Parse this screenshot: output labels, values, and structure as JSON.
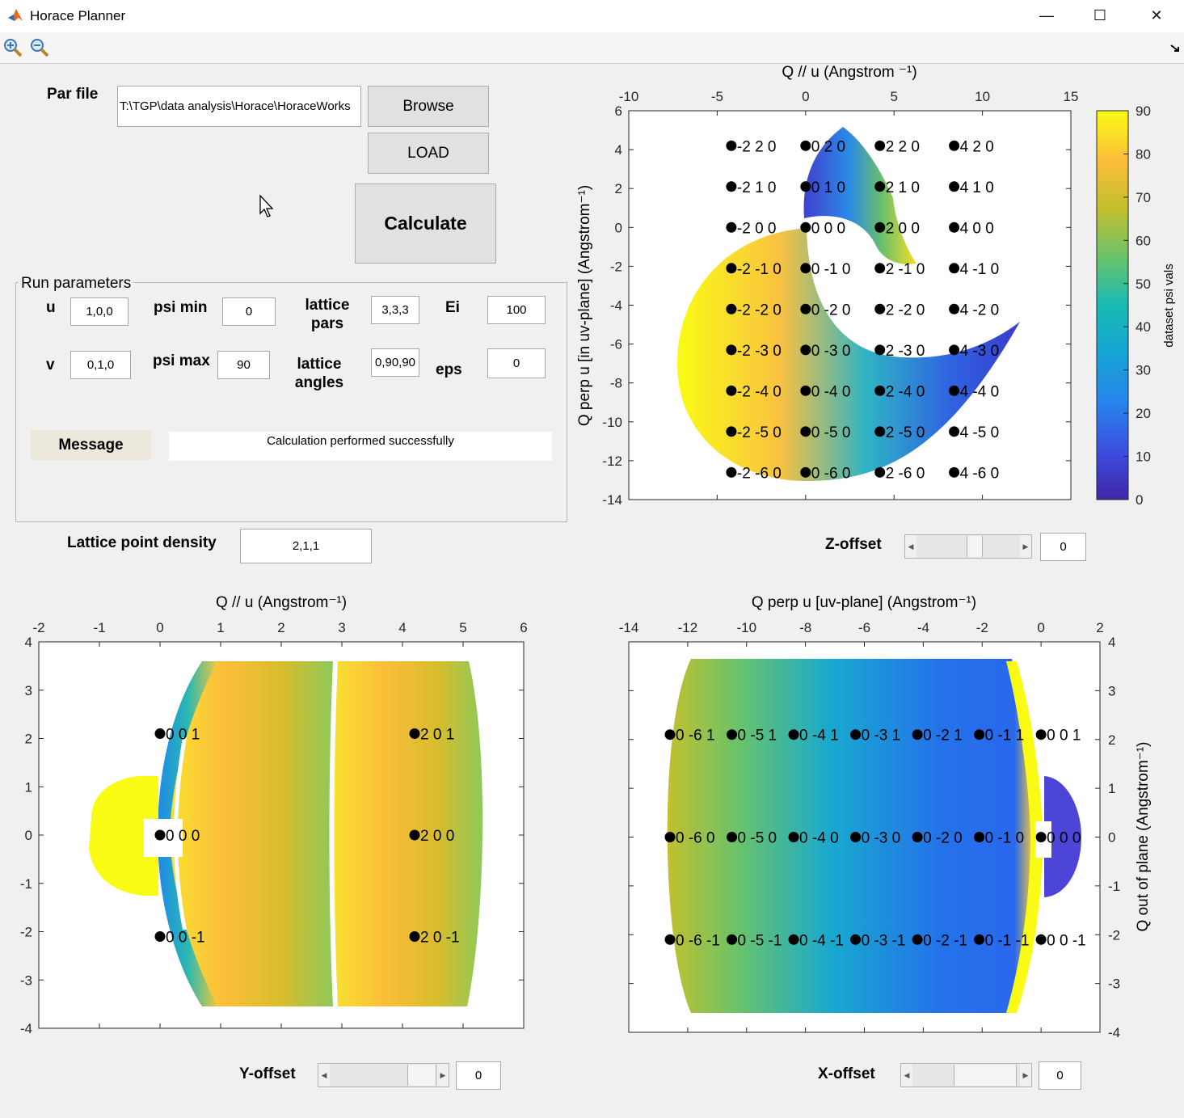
{
  "window": {
    "title": "Horace Planner",
    "minimize": "—",
    "maximize": "☐",
    "close": "✕"
  },
  "toolbar": {
    "zoom_in": "zoom-in",
    "zoom_out": "zoom-out"
  },
  "file": {
    "par_label": "Par file",
    "par_value": "T:\\TGP\\data analysis\\Horace\\HoraceWorks",
    "browse": "Browse",
    "load": "LOAD",
    "calculate": "Calculate"
  },
  "run": {
    "title": "Run parameters",
    "u_label": "u",
    "u_value": "1,0,0",
    "v_label": "v",
    "v_value": "0,1,0",
    "psimin_label": "psi min",
    "psimin_value": "0",
    "psimax_label": "psi max",
    "psimax_value": "90",
    "latpars_line1": "lattice",
    "latpars_line2": "pars",
    "latpars_value": "3,3,3",
    "latang_line1": "lattice",
    "latang_line2": "angles",
    "latang_value": "0,90,90",
    "ei_label": "Ei",
    "ei_value": "100",
    "eps_label": "eps",
    "eps_value": "0",
    "message_label": "Message",
    "message_text": "Calculation performed successfully"
  },
  "density": {
    "label": "Lattice point density",
    "value": "2,1,1"
  },
  "offsets": {
    "z_label": "Z-offset",
    "z_value": "0",
    "y_label": "Y-offset",
    "y_value": "0",
    "x_label": "X-offset",
    "x_value": "0"
  },
  "chart_data": [
    {
      "type": "scatter",
      "xlabel": "Q // u (Angstrom ⁻¹)",
      "ylabel": "Q perp u [in uv-plane] (Angstrom⁻¹)",
      "xlim": [
        -10,
        15
      ],
      "ylim": [
        -14,
        6
      ],
      "xticks": [
        -10,
        -5,
        0,
        5,
        10,
        15
      ],
      "yticks": [
        6,
        4,
        2,
        0,
        -2,
        -4,
        -6,
        -8,
        -10,
        -12,
        -14
      ],
      "colorbar": {
        "label": "dataset psi vals",
        "ticks": [
          90,
          80,
          70,
          60,
          50,
          40,
          30,
          20,
          10,
          0
        ],
        "range": [
          0,
          90
        ]
      },
      "points": [
        {
          "x": -4.2,
          "y": 4.2,
          "label": "-2 2 0"
        },
        {
          "x": 0,
          "y": 4.2,
          "label": "0 2 0"
        },
        {
          "x": 4.2,
          "y": 4.2,
          "label": "2 2 0"
        },
        {
          "x": 8.4,
          "y": 4.2,
          "label": "4 2 0"
        },
        {
          "x": -4.2,
          "y": 2.1,
          "label": "-2 1 0"
        },
        {
          "x": 0,
          "y": 2.1,
          "label": "0 1 0"
        },
        {
          "x": 4.2,
          "y": 2.1,
          "label": "2 1 0"
        },
        {
          "x": 8.4,
          "y": 2.1,
          "label": "4 1 0"
        },
        {
          "x": -4.2,
          "y": 0,
          "label": "-2 0 0"
        },
        {
          "x": 0,
          "y": 0,
          "label": "0 0 0"
        },
        {
          "x": 4.2,
          "y": 0,
          "label": "2 0 0"
        },
        {
          "x": 8.4,
          "y": 0,
          "label": "4 0 0"
        },
        {
          "x": -4.2,
          "y": -2.1,
          "label": "-2 -1 0"
        },
        {
          "x": 0,
          "y": -2.1,
          "label": "0 -1 0"
        },
        {
          "x": 4.2,
          "y": -2.1,
          "label": "2 -1 0"
        },
        {
          "x": 8.4,
          "y": -2.1,
          "label": "4 -1 0"
        },
        {
          "x": -4.2,
          "y": -4.2,
          "label": "-2 -2 0"
        },
        {
          "x": 0,
          "y": -4.2,
          "label": "0 -2 0"
        },
        {
          "x": 4.2,
          "y": -4.2,
          "label": "2 -2 0"
        },
        {
          "x": 8.4,
          "y": -4.2,
          "label": "4 -2 0"
        },
        {
          "x": -4.2,
          "y": -6.3,
          "label": "-2 -3 0"
        },
        {
          "x": 0,
          "y": -6.3,
          "label": "0 -3 0"
        },
        {
          "x": 4.2,
          "y": -6.3,
          "label": "2 -3 0"
        },
        {
          "x": 8.4,
          "y": -6.3,
          "label": "4 -3 0"
        },
        {
          "x": -4.2,
          "y": -8.4,
          "label": "-2 -4 0"
        },
        {
          "x": 0,
          "y": -8.4,
          "label": "0 -4 0"
        },
        {
          "x": 4.2,
          "y": -8.4,
          "label": "2 -4 0"
        },
        {
          "x": 8.4,
          "y": -8.4,
          "label": "4 -4 0"
        },
        {
          "x": -4.2,
          "y": -10.5,
          "label": "-2 -5 0"
        },
        {
          "x": 0,
          "y": -10.5,
          "label": "0 -5 0"
        },
        {
          "x": 4.2,
          "y": -10.5,
          "label": "2 -5 0"
        },
        {
          "x": 8.4,
          "y": -10.5,
          "label": "4 -5 0"
        },
        {
          "x": -4.2,
          "y": -12.6,
          "label": "-2 -6 0"
        },
        {
          "x": 0,
          "y": -12.6,
          "label": "0 -6 0"
        },
        {
          "x": 4.2,
          "y": -12.6,
          "label": "2 -6 0"
        },
        {
          "x": 8.4,
          "y": -12.6,
          "label": "4 -6 0"
        }
      ]
    },
    {
      "type": "scatter",
      "xlabel": "Q // u (Angstrom⁻¹)",
      "xlim": [
        -2,
        6
      ],
      "ylim": [
        -4,
        4
      ],
      "xticks": [
        -2,
        -1,
        0,
        1,
        2,
        3,
        4,
        5,
        6
      ],
      "yticks": [
        4,
        3,
        2,
        1,
        0,
        -1,
        -2,
        -3,
        -4
      ],
      "points": [
        {
          "x": 0,
          "y": 2.1,
          "label": "0 0 1"
        },
        {
          "x": 4.2,
          "y": 2.1,
          "label": "2 0 1"
        },
        {
          "x": 0,
          "y": 0,
          "label": "0 0 0"
        },
        {
          "x": 4.2,
          "y": 0,
          "label": "2 0 0"
        },
        {
          "x": 0,
          "y": -2.1,
          "label": "0 0 -1"
        },
        {
          "x": 4.2,
          "y": -2.1,
          "label": "2 0 -1"
        }
      ]
    },
    {
      "type": "scatter",
      "xlabel": "Q perp u [uv-plane] (Angstrom⁻¹)",
      "ylabel": "Q out of plane (Angstrom⁻¹)",
      "xlim": [
        -14,
        2
      ],
      "ylim": [
        -4,
        4
      ],
      "xticks": [
        -14,
        -12,
        -10,
        -8,
        -6,
        -4,
        -2,
        0,
        2
      ],
      "yticks": [
        4,
        3,
        2,
        1,
        0,
        -1,
        -2,
        -3,
        -4
      ],
      "points": [
        {
          "x": -12.6,
          "y": 2.1,
          "label": "0 -6 1"
        },
        {
          "x": -10.5,
          "y": 2.1,
          "label": "0 -5 1"
        },
        {
          "x": -8.4,
          "y": 2.1,
          "label": "0 -4 1"
        },
        {
          "x": -6.3,
          "y": 2.1,
          "label": "0 -3 1"
        },
        {
          "x": -4.2,
          "y": 2.1,
          "label": "0 -2 1"
        },
        {
          "x": -2.1,
          "y": 2.1,
          "label": "0 -1 1"
        },
        {
          "x": 0,
          "y": 2.1,
          "label": "0 0 1"
        },
        {
          "x": -12.6,
          "y": 0,
          "label": "0 -6 0"
        },
        {
          "x": -10.5,
          "y": 0,
          "label": "0 -5 0"
        },
        {
          "x": -8.4,
          "y": 0,
          "label": "0 -4 0"
        },
        {
          "x": -6.3,
          "y": 0,
          "label": "0 -3 0"
        },
        {
          "x": -4.2,
          "y": 0,
          "label": "0 -2 0"
        },
        {
          "x": -2.1,
          "y": 0,
          "label": "0 -1 0"
        },
        {
          "x": 0,
          "y": 0,
          "label": "0 0 0"
        },
        {
          "x": -12.6,
          "y": -2.1,
          "label": "0 -6 -1"
        },
        {
          "x": -10.5,
          "y": -2.1,
          "label": "0 -5 -1"
        },
        {
          "x": -8.4,
          "y": -2.1,
          "label": "0 -4 -1"
        },
        {
          "x": -6.3,
          "y": -2.1,
          "label": "0 -3 -1"
        },
        {
          "x": -4.2,
          "y": -2.1,
          "label": "0 -2 -1"
        },
        {
          "x": -2.1,
          "y": -2.1,
          "label": "0 -1 -1"
        },
        {
          "x": 0,
          "y": -2.1,
          "label": "0 0 -1"
        }
      ]
    }
  ]
}
